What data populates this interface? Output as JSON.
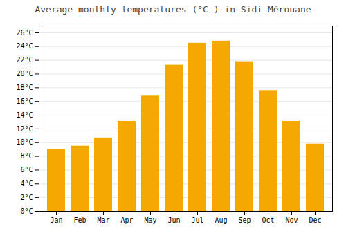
{
  "chart_data": {
    "type": "bar",
    "title": "Average monthly temperatures (°C ) in Sidi Mérouane",
    "categories": [
      "Jan",
      "Feb",
      "Mar",
      "Apr",
      "May",
      "Jun",
      "Jul",
      "Aug",
      "Sep",
      "Oct",
      "Nov",
      "Dec"
    ],
    "values": [
      9.0,
      9.5,
      10.7,
      13.1,
      16.8,
      21.3,
      24.5,
      24.8,
      21.8,
      17.6,
      13.1,
      9.8
    ],
    "color": "#F5A800",
    "ylim": [
      0,
      27
    ],
    "yticks": [
      {
        "value": 0,
        "label": "0°C"
      },
      {
        "value": 2,
        "label": "2°C"
      },
      {
        "value": 4,
        "label": "4°C"
      },
      {
        "value": 6,
        "label": "6°C"
      },
      {
        "value": 8,
        "label": "8°C"
      },
      {
        "value": 10,
        "label": "10°C"
      },
      {
        "value": 12,
        "label": "12°C"
      },
      {
        "value": 14,
        "label": "14°C"
      },
      {
        "value": 16,
        "label": "16°C"
      },
      {
        "value": 18,
        "label": "18°C"
      },
      {
        "value": 20,
        "label": "20°C"
      },
      {
        "value": 22,
        "label": "22°C"
      },
      {
        "value": 24,
        "label": "24°C"
      },
      {
        "value": 26,
        "label": "26°C"
      }
    ],
    "grid": true
  }
}
